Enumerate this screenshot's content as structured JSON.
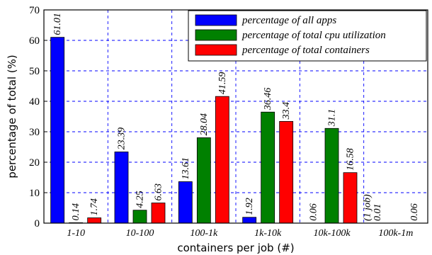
{
  "chart_data": {
    "type": "bar",
    "xlabel": "containers per job (#)",
    "ylabel": "percentage of total (%)",
    "ylim": [
      0,
      70
    ],
    "yticks": [
      0,
      10,
      20,
      30,
      40,
      50,
      60,
      70
    ],
    "grid": true,
    "legend_position": "top-right",
    "categories": [
      "1-10",
      "10-100",
      "100-1k",
      "1k-10k",
      "10k-100k",
      "100k-1m"
    ],
    "series": [
      {
        "name": "percentage of all apps",
        "color": "#0000ff",
        "values": [
          61.01,
          23.39,
          13.61,
          1.92,
          0.06,
          0.01
        ],
        "labels": [
          "61.01",
          "23.39",
          "13.61",
          "1.92",
          "0.06",
          "0.01"
        ]
      },
      {
        "name": "percentage of total cpu utilization",
        "color": "#008000",
        "values": [
          0.14,
          4.25,
          28.04,
          36.46,
          31.1,
          null
        ],
        "labels": [
          "0.14",
          "4.25",
          "28.04",
          "36.46",
          "31.1",
          ""
        ]
      },
      {
        "name": "percentage of total containers",
        "color": "#ff0000",
        "values": [
          1.74,
          6.63,
          41.59,
          33.4,
          16.58,
          0.06
        ],
        "labels": [
          "1.74",
          "6.63",
          "41.59",
          "33.4",
          "16.58",
          "0.06"
        ]
      }
    ],
    "annotations": [
      {
        "text": "(1 job)",
        "category": "10k-100k"
      }
    ]
  }
}
